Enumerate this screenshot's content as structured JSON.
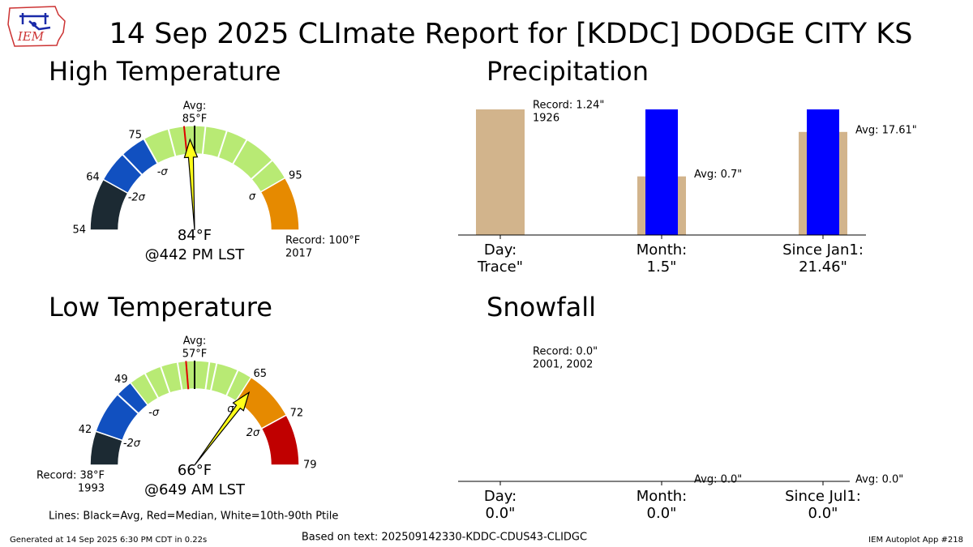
{
  "header": {
    "logo": "IEM",
    "title": "14 Sep 2025 CLImate Report for [KDDC] DODGE CITY KS"
  },
  "chart_data": [
    {
      "type": "gauge",
      "title": "High Temperature",
      "lim": [
        54,
        100
      ],
      "bands": [
        {
          "from": 54,
          "to": 64,
          "color": "#1c2a33"
        },
        {
          "from": 64,
          "to": 75,
          "color": "#1150c0"
        },
        {
          "from": 75,
          "to": 95,
          "color": "#b8ea74"
        },
        {
          "from": 95,
          "to": 100,
          "color": "#e68a00"
        }
      ],
      "ticks": [
        54,
        64,
        75,
        95
      ],
      "sigma_labels": [
        {
          "value": 64,
          "label": "-2σ"
        },
        {
          "value": 75,
          "label": "-σ"
        },
        {
          "value": 95,
          "label": "σ"
        }
      ],
      "avg": 85,
      "avg_text": "Avg:",
      "avg_label": "85°F",
      "median": 83,
      "percentiles": [
        70,
        75,
        80,
        86,
        88,
        90,
        93
      ],
      "value": 84,
      "value_label": "84°F",
      "time": "@442 PM LST",
      "record": 100,
      "record_label": "Record: 100°F",
      "record_year": "2017"
    },
    {
      "type": "bar",
      "scale": "per-category",
      "title": "Precipitation",
      "categories": [
        "Day:",
        "Month:",
        "Since Jan1:"
      ],
      "series": [
        {
          "color": "#d2b48c",
          "values": [
            1.24,
            0.7,
            17.61
          ],
          "value_labels": [
            "Record: 1.24\"",
            "Avg: 0.7\"",
            "Avg: 17.61\""
          ],
          "notes": [
            "1926",
            null,
            null
          ]
        },
        {
          "color": "#0000ff",
          "values": [
            0,
            1.5,
            21.46
          ],
          "value_labels": [
            "Trace\"",
            "1.5\"",
            "21.46\""
          ]
        }
      ]
    },
    {
      "type": "gauge",
      "title": "Low Temperature",
      "lim": [
        38,
        79
      ],
      "bands": [
        {
          "from": 38,
          "to": 42,
          "color": "#1c2a33"
        },
        {
          "from": 42,
          "to": 49,
          "color": "#1150c0"
        },
        {
          "from": 49,
          "to": 65,
          "color": "#b8ea74"
        },
        {
          "from": 65,
          "to": 72,
          "color": "#e68a00"
        },
        {
          "from": 72,
          "to": 79,
          "color": "#c00000"
        }
      ],
      "ticks": [
        42,
        49,
        65,
        72,
        79
      ],
      "sigma_labels": [
        {
          "value": 42,
          "label": "-2σ"
        },
        {
          "value": 49,
          "label": "-σ"
        },
        {
          "value": 65,
          "label": "σ"
        },
        {
          "value": 72,
          "label": "2σ"
        }
      ],
      "avg": 57,
      "avg_text": "Avg:",
      "avg_label": "57°F",
      "median": 56,
      "percentiles": [
        47,
        51,
        53,
        55,
        59,
        60,
        63
      ],
      "value": 66,
      "value_label": "66°F",
      "time": "@649 AM LST",
      "record": 38,
      "record_label": "Record: 38°F",
      "record_year": "1993"
    },
    {
      "type": "bar",
      "scale": "per-category",
      "title": "Snowfall",
      "categories": [
        "Day:",
        "Month:",
        "Since Jul1:"
      ],
      "series": [
        {
          "color": "#d2b48c",
          "values": [
            0,
            0,
            0
          ],
          "value_labels": [
            "Record: 0.0\"",
            "Avg: 0.0\"",
            "Avg: 0.0\""
          ],
          "notes": [
            "2001, 2002",
            null,
            null
          ]
        },
        {
          "color": "#0000ff",
          "values": [
            0,
            0,
            0
          ],
          "value_labels": [
            "0.0\"",
            "0.0\"",
            "0.0\""
          ]
        }
      ]
    }
  ],
  "footer": {
    "note": "Lines: Black=Avg, Red=Median, White=10th-90th Ptile",
    "generated": "Generated at 14 Sep 2025 6:30 PM CDT in 0.22s",
    "source": "Based on text: 202509142330-KDDC-CDUS43-CLIDGC",
    "app": "IEM Autoplot App #218"
  }
}
